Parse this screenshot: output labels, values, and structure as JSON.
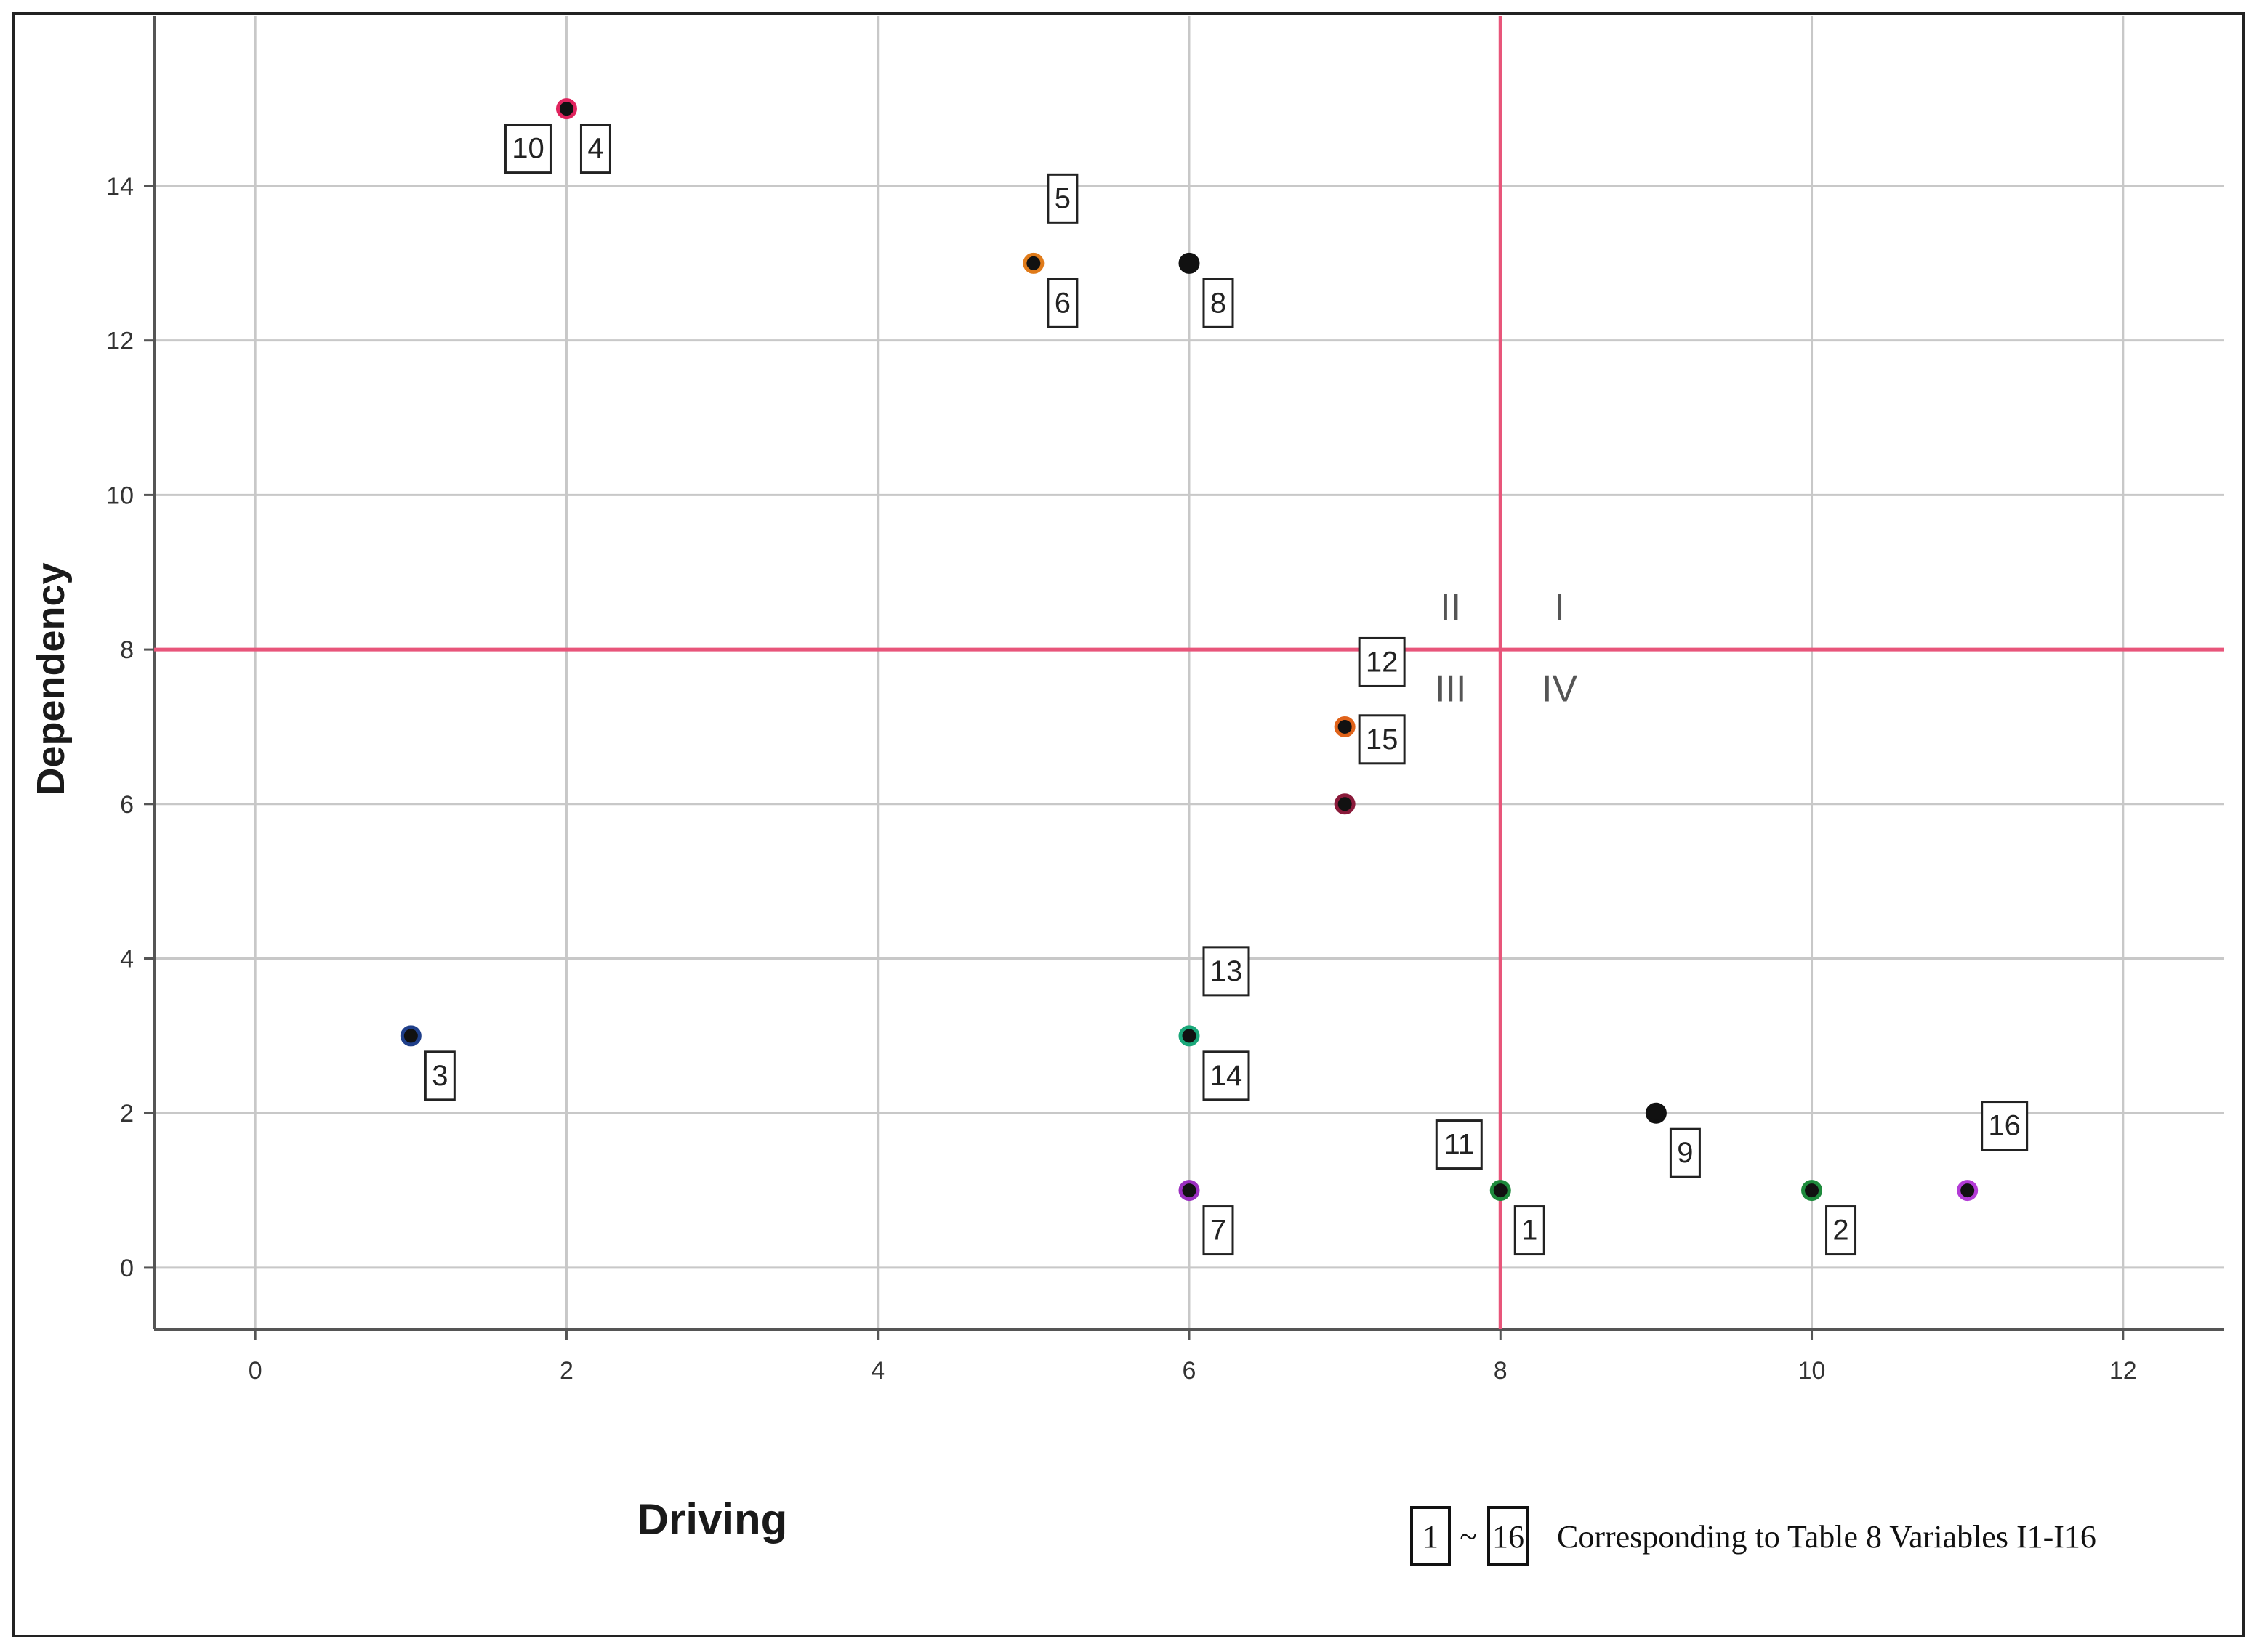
{
  "chart_data": {
    "type": "scatter",
    "xlabel": "Driving",
    "ylabel": "Dependency",
    "xlim": [
      -0.65,
      12.65
    ],
    "ylim": [
      -0.8,
      16.2
    ],
    "x_ticks": [
      0,
      2,
      4,
      6,
      8,
      10,
      12
    ],
    "y_ticks": [
      0,
      2,
      4,
      6,
      8,
      10,
      12,
      14
    ],
    "grid": true,
    "reference_lines": {
      "x": 8,
      "y": 8,
      "color": "#e8557a"
    },
    "quadrant_labels": [
      {
        "text": "II",
        "x": 7.68,
        "y": 8.55
      },
      {
        "text": "I",
        "x": 8.38,
        "y": 8.55
      },
      {
        "text": "III",
        "x": 7.68,
        "y": 7.5
      },
      {
        "text": "IV",
        "x": 8.38,
        "y": 7.5
      }
    ],
    "points": [
      {
        "x": 8,
        "y": 1,
        "color": "#1e8a3c",
        "labels": [
          {
            "text": "1",
            "pos": "below-right"
          },
          {
            "text": "11",
            "pos": "above-left"
          }
        ]
      },
      {
        "x": 10,
        "y": 1,
        "color": "#1e8a3c",
        "labels": [
          {
            "text": "2",
            "pos": "below-right"
          }
        ]
      },
      {
        "x": 1,
        "y": 3,
        "color": "#1f3f8a",
        "labels": [
          {
            "text": "3",
            "pos": "below-right"
          }
        ]
      },
      {
        "x": 2,
        "y": 15,
        "color": "#e0245e",
        "labels": [
          {
            "text": "4",
            "pos": "below-right"
          },
          {
            "text": "10",
            "pos": "below-left"
          }
        ]
      },
      {
        "x": 5,
        "y": 13,
        "color": "#e07b1a",
        "labels": [
          {
            "text": "5",
            "pos": "above-right"
          },
          {
            "text": "6",
            "pos": "below-right"
          }
        ]
      },
      {
        "x": 6,
        "y": 1,
        "color": "#9b2fc0",
        "labels": [
          {
            "text": "7",
            "pos": "below-right"
          }
        ]
      },
      {
        "x": 6,
        "y": 13,
        "color": "#111111",
        "labels": [
          {
            "text": "8",
            "pos": "below-right"
          }
        ]
      },
      {
        "x": 9,
        "y": 2,
        "color": "#111111",
        "labels": [
          {
            "text": "9",
            "pos": "below-right"
          }
        ]
      },
      {
        "x": 7,
        "y": 7,
        "color": "#e0631a",
        "labels": [
          {
            "text": "12",
            "pos": "above-right"
          }
        ]
      },
      {
        "x": 6,
        "y": 3,
        "color": "#1aa87a",
        "labels": [
          {
            "text": "13",
            "pos": "above-right"
          },
          {
            "text": "14",
            "pos": "below-right"
          }
        ]
      },
      {
        "x": 7,
        "y": 6,
        "color": "#8a1a3a",
        "labels": [
          {
            "text": "15",
            "pos": "above-right"
          }
        ]
      },
      {
        "x": 11,
        "y": 1,
        "color": "#b33bd6",
        "labels": [
          {
            "text": "16",
            "pos": "above-right"
          }
        ]
      }
    ],
    "legend": {
      "box_start": "1",
      "dash": "~",
      "box_end": "16",
      "text": "Corresponding to Table 8 Variables I1-I16"
    }
  }
}
